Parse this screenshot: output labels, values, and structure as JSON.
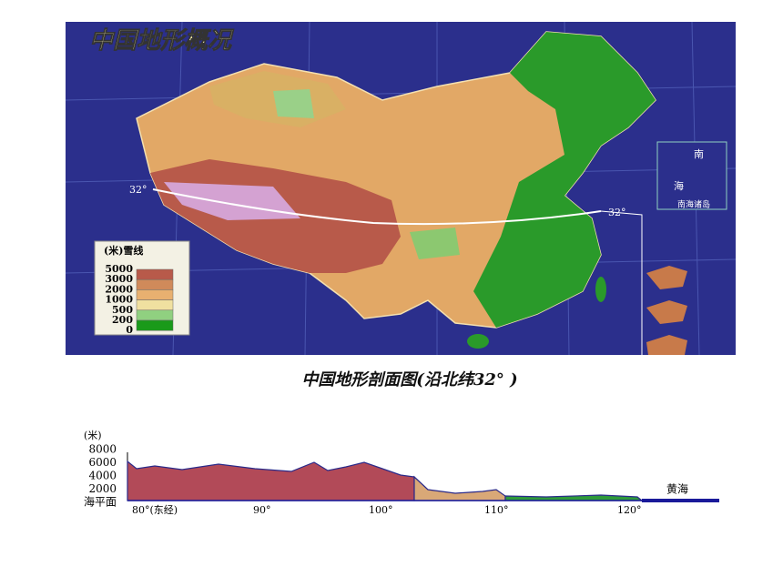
{
  "map": {
    "title": "中国地形概况",
    "latitude_labels": [
      "32°",
      "32°"
    ],
    "legend": {
      "title": "(米)雪线",
      "levels": [
        "5000",
        "3000",
        "2000",
        "1000",
        "500",
        "200",
        "0"
      ]
    },
    "inset": {
      "labels": [
        "南",
        "海"
      ],
      "caption": "南海诸岛"
    }
  },
  "profile": {
    "title": "中国地形剖面图(沿北纬32° )",
    "y_unit": "(米)",
    "y_labels": [
      "8000",
      "6000",
      "4000",
      "2000",
      "海平面"
    ],
    "x_labels": [
      "80°(东经)",
      "90°",
      "100°",
      "110°",
      "120°"
    ],
    "sea_label": "黄海"
  }
}
